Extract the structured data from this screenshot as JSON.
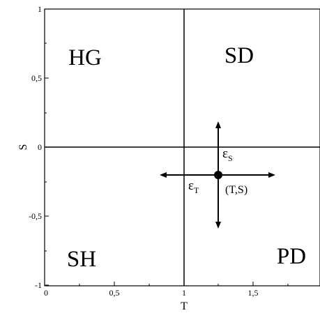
{
  "axes": {
    "xlabel": "T",
    "ylabel": "S",
    "xlim": [
      0,
      2
    ],
    "ylim": [
      -1,
      1
    ],
    "xticks": [
      "0",
      "0,5",
      "1",
      "1,5"
    ],
    "yticks": [
      "1",
      "0,5",
      "0",
      "-0,5",
      "-1"
    ]
  },
  "quadrants": {
    "hg": "HG",
    "sd": "SD",
    "sh": "SH",
    "pd": "PD"
  },
  "divider_lines": {
    "vertical_T": 1,
    "horizontal_S": 0
  },
  "point": {
    "label": "(T,S)",
    "T": 1.25,
    "S": -0.2
  },
  "epsilon": {
    "t_symbol": "ε",
    "t_sub": "T",
    "s_symbol": "ε",
    "s_sub": "S"
  },
  "colors": {
    "line": "#000000",
    "background": "#ffffff"
  }
}
